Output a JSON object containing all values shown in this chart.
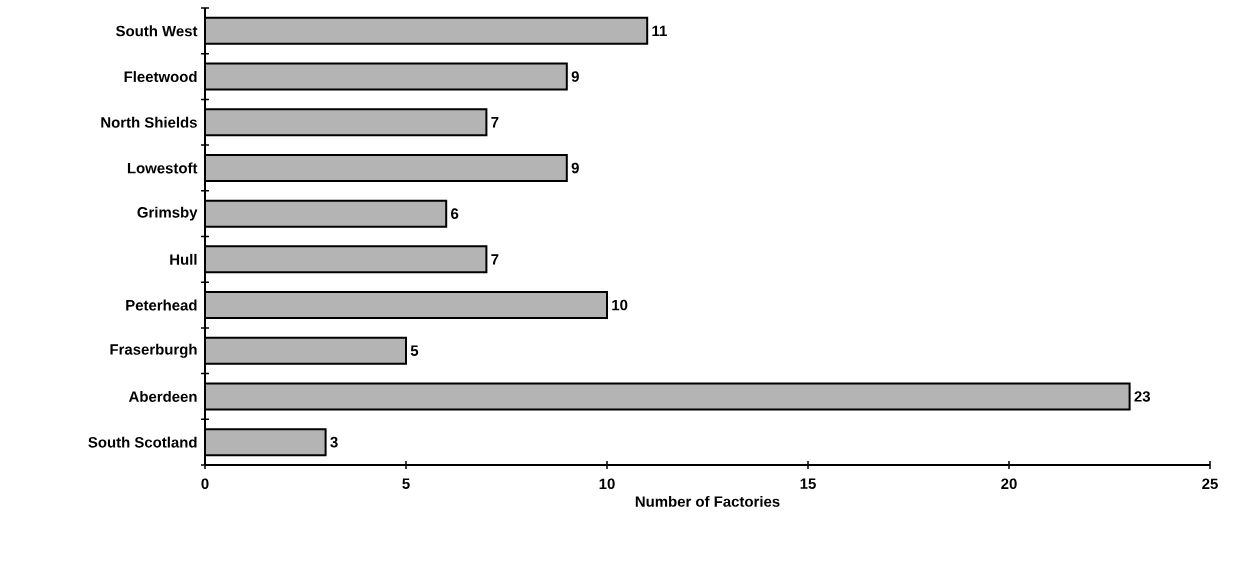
{
  "chart_data": {
    "type": "bar",
    "orientation": "horizontal",
    "xlabel": "Number of Factories",
    "categories": [
      "South West",
      "Fleetwood",
      "North Shields",
      "Lowestoft",
      "Grimsby",
      "Hull",
      "Peterhead",
      "Fraserburgh",
      "Aberdeen",
      "South Scotland"
    ],
    "values": [
      11,
      9,
      7,
      9,
      6,
      7,
      10,
      5,
      23,
      3
    ],
    "color": "#b4b4b4",
    "xlim": [
      0,
      25
    ],
    "xticks": [
      0,
      5,
      10,
      15,
      20,
      25
    ],
    "data_labels": true
  }
}
